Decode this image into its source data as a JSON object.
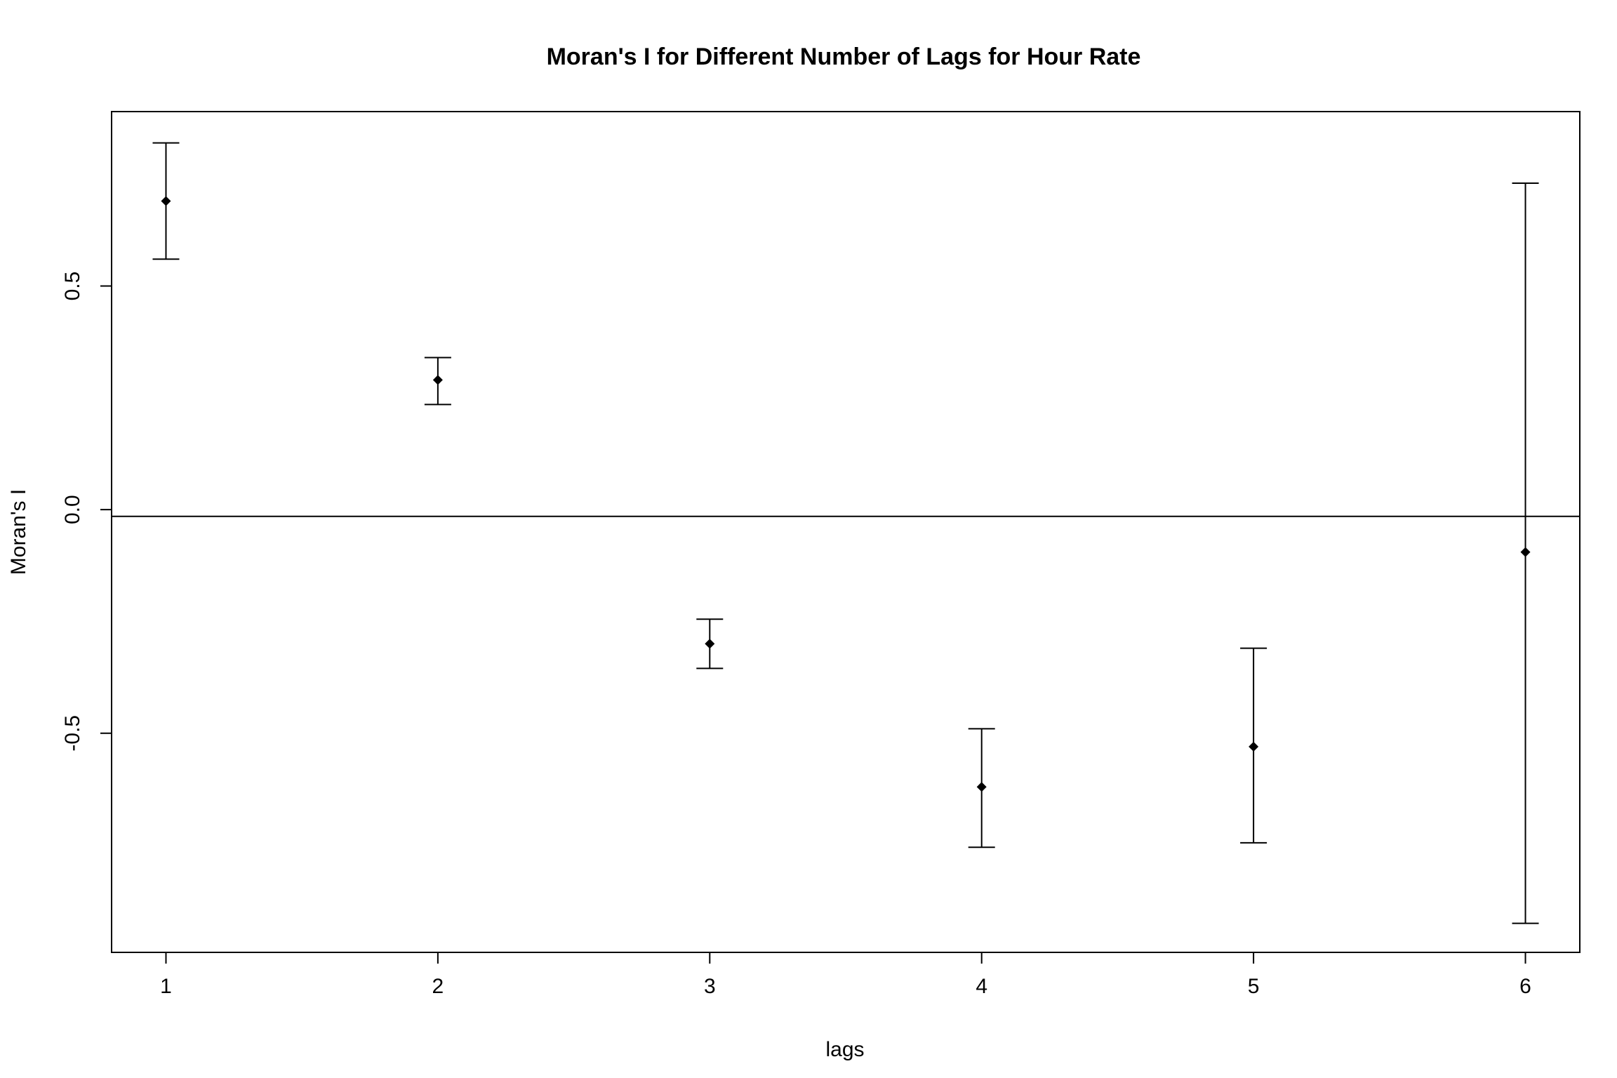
{
  "chart_data": {
    "type": "scatter",
    "title": "Moran's I for Different Number of Lags for Hour Rate",
    "xlabel": "lags",
    "ylabel": "Moran's  I",
    "xlim": [
      0.8,
      6.2
    ],
    "ylim": [
      -0.99,
      0.89
    ],
    "x_ticks": [
      "1",
      "2",
      "3",
      "4",
      "5",
      "6"
    ],
    "y_ticks": [
      "-0.5",
      "0.0",
      "0.5"
    ],
    "y_tick_values": [
      -0.5,
      0.0,
      0.5
    ],
    "reference_line_y": -0.015,
    "grid": false,
    "series": [
      {
        "x": [
          1,
          2,
          3,
          4,
          5,
          6
        ],
        "y": [
          0.69,
          0.29,
          -0.3,
          -0.62,
          -0.53,
          -0.095
        ],
        "lower": [
          0.56,
          0.235,
          -0.355,
          -0.755,
          -0.745,
          -0.925
        ],
        "upper": [
          0.82,
          0.34,
          -0.245,
          -0.49,
          -0.31,
          0.73
        ]
      }
    ]
  }
}
